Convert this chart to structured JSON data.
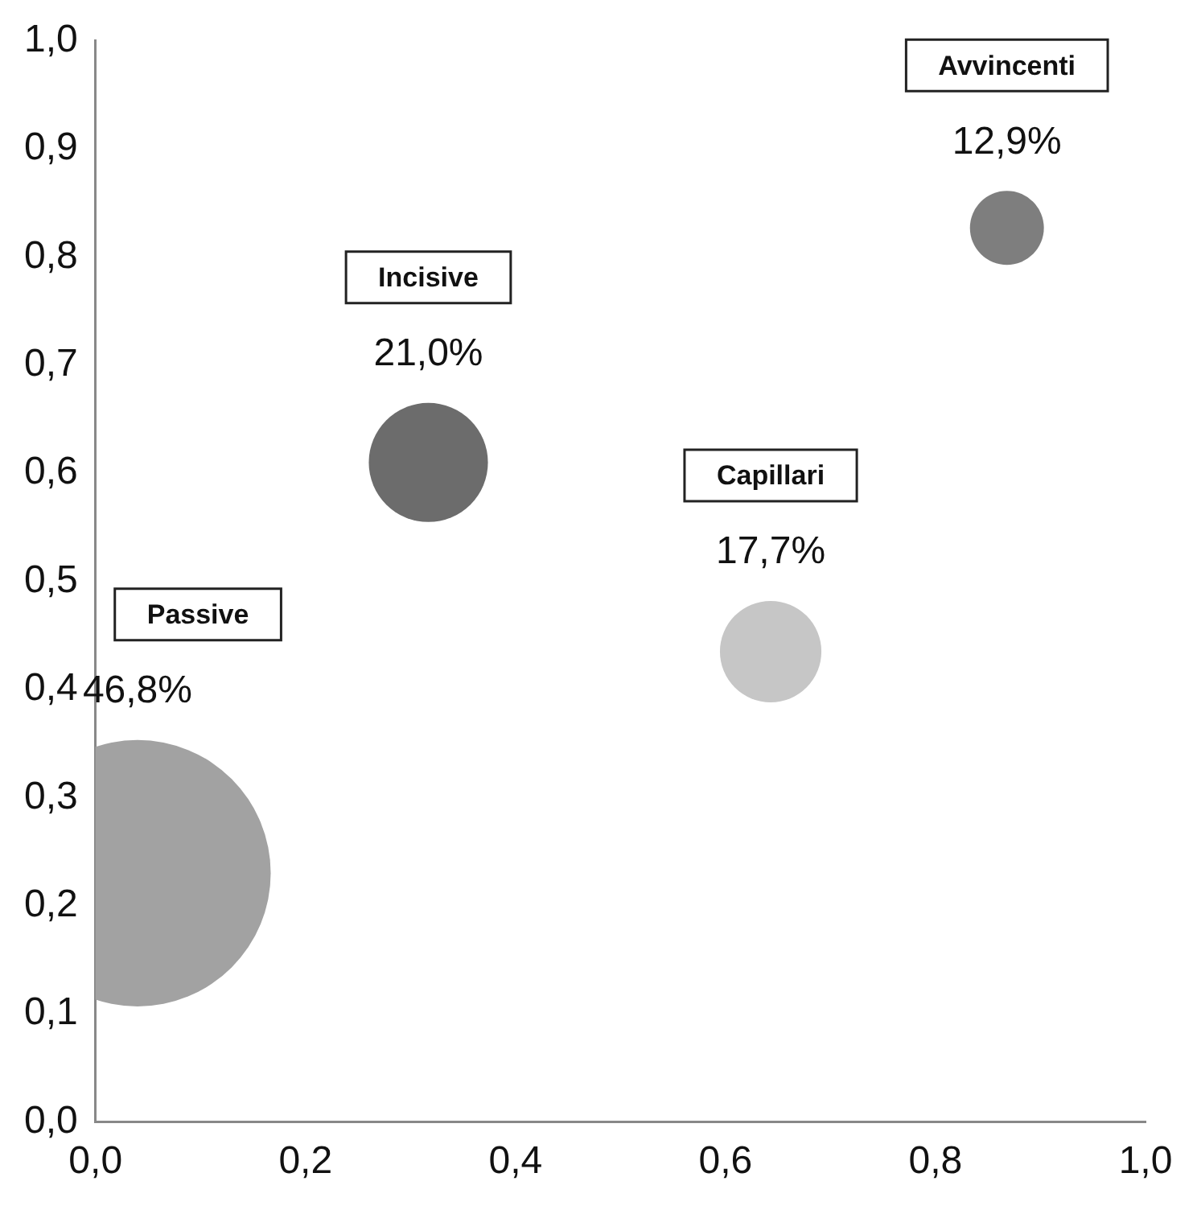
{
  "chart_data": {
    "type": "bubble",
    "xlim": [
      0,
      1
    ],
    "ylim": [
      0,
      1
    ],
    "xticks": [
      {
        "value": 0,
        "label": "0,0"
      },
      {
        "value": 0.2,
        "label": "0,2"
      },
      {
        "value": 0.4,
        "label": "0,4"
      },
      {
        "value": 0.6,
        "label": "0,6"
      },
      {
        "value": 0.8,
        "label": "0,8"
      },
      {
        "value": 1,
        "label": "1,0"
      }
    ],
    "yticks": [
      {
        "value": 0,
        "label": "0,0"
      },
      {
        "value": 0.1,
        "label": "0,1"
      },
      {
        "value": 0.2,
        "label": "0,2"
      },
      {
        "value": 0.3,
        "label": "0,3"
      },
      {
        "value": 0.4,
        "label": "0,4"
      },
      {
        "value": 0.5,
        "label": "0,5"
      },
      {
        "value": 0.6,
        "label": "0,6"
      },
      {
        "value": 0.7,
        "label": "0,7"
      },
      {
        "value": 0.8,
        "label": "0,8"
      },
      {
        "value": 0.9,
        "label": "0,9"
      },
      {
        "value": 1,
        "label": "1,0"
      }
    ],
    "grid": false,
    "legend": false,
    "series": [
      {
        "color": "#a2a2a2",
        "x": [
          0.04
        ],
        "values": [
          0.23
        ],
        "sizes": [
          1
        ]
      },
      {
        "color": "#6c6c6c",
        "x": [
          0.317
        ],
        "values": [
          0.61
        ],
        "sizes": [
          0.2
        ]
      },
      {
        "color": "#c6c6c6",
        "x": [
          0.643
        ],
        "values": [
          0.435
        ],
        "sizes": [
          0.145
        ]
      },
      {
        "color": "#7e7e7e",
        "x": [
          0.868
        ],
        "values": [
          0.827
        ],
        "sizes": [
          0.077
        ]
      }
    ],
    "annotations": [
      "46,8%",
      "Passive",
      "21,0%",
      "Incisive",
      "17,7%",
      "Capillari",
      "12,9%",
      "Avvincenti"
    ]
  }
}
